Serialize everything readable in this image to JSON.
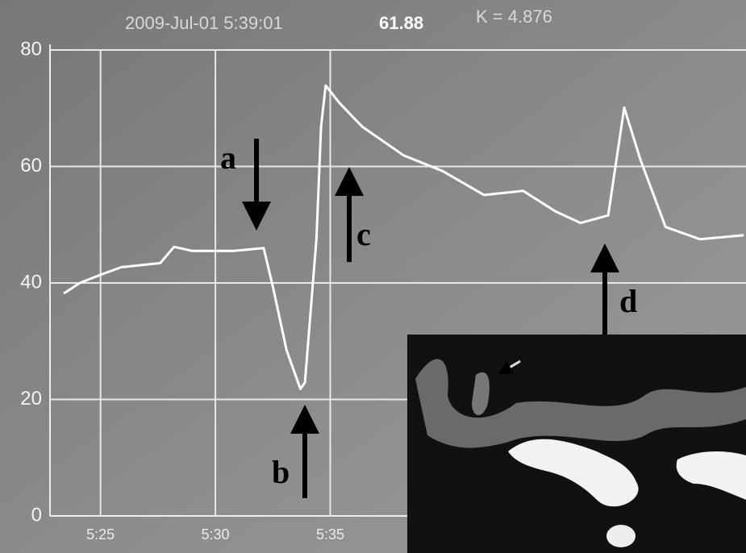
{
  "chart_data": {
    "type": "line",
    "header": [
      "2009-Jul-01 5:39:01",
      "61.88",
      "K = 4.876"
    ],
    "x": [
      323.4,
      324.1,
      325,
      325.9,
      327.6,
      328.2,
      329,
      330.8,
      332.1,
      332.5,
      333.1,
      333.7,
      333.9,
      334.4,
      334.6,
      334.8,
      335.4,
      336.4,
      338.2,
      339.9,
      341.7,
      343.4,
      344.8,
      345.9,
      347.1,
      347.8,
      348.5,
      349.6,
      351.1,
      353
    ],
    "values": [
      38.2,
      40,
      41.4,
      42.7,
      43.4,
      46.2,
      45.5,
      45.5,
      46,
      39.4,
      28.4,
      21.8,
      22.9,
      47.6,
      66.8,
      73.9,
      70.9,
      66.8,
      61.9,
      59.2,
      55.1,
      55.8,
      52.3,
      50.3,
      51.6,
      70.1,
      61.2,
      49.6,
      47.5,
      48.2
    ],
    "color": "#ffffff",
    "xlim": [
      322.8,
      353.1
    ],
    "xticks": [
      {
        "value": 325,
        "label": "5:25"
      },
      {
        "value": 330,
        "label": "5:30"
      },
      {
        "value": 335,
        "label": "5:35"
      }
    ],
    "ylim": [
      0,
      80
    ],
    "yticks": [
      0,
      20,
      40,
      60,
      80
    ],
    "grid": true,
    "annotations": [
      "a",
      "b",
      "c",
      "d"
    ]
  }
}
